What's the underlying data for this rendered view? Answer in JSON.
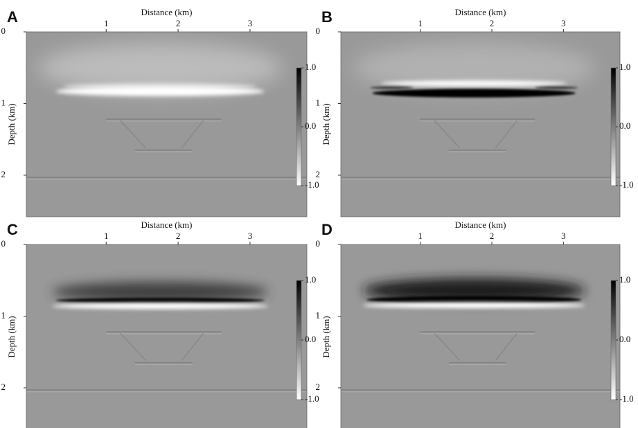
{
  "chart_data": [
    {
      "type": "image",
      "panel_label": "A",
      "xlabel": "Distance (km)",
      "ylabel": "Depth (km)",
      "xlim": [
        -0.11,
        3.79
      ],
      "ylim": [
        0,
        2.58
      ],
      "y_inverted": true,
      "xticks": [
        1,
        2,
        3
      ],
      "yticks": [
        0,
        1,
        2
      ],
      "colorbar": {
        "lim": [
          -1,
          1
        ],
        "ticks": [
          {
            "value": 1,
            "label": "1.0"
          },
          {
            "value": 0,
            "label": "0.0"
          },
          {
            "value": -1,
            "label": "-1.0"
          }
        ]
      }
    },
    {
      "type": "image",
      "panel_label": "B",
      "xlabel": "Distance (km)",
      "ylabel": "Depth (km)",
      "xlim": [
        -0.11,
        3.79
      ],
      "ylim": [
        0,
        2.58
      ],
      "y_inverted": true,
      "xticks": [
        1,
        2,
        3
      ],
      "yticks": [
        0,
        1,
        2
      ],
      "colorbar": {
        "lim": [
          -1,
          1
        ],
        "ticks": [
          {
            "value": 1,
            "label": "1.0"
          },
          {
            "value": 0,
            "label": "0.0"
          },
          {
            "value": -1,
            "label": "-1.0"
          }
        ]
      }
    },
    {
      "type": "image",
      "panel_label": "C",
      "xlabel": "Distance (km)",
      "ylabel": "Depth (km)",
      "xlim": [
        -0.11,
        3.79
      ],
      "ylim": [
        0,
        2.58
      ],
      "y_inverted": true,
      "xticks": [
        1,
        2,
        3
      ],
      "yticks": [
        0,
        1,
        2
      ],
      "colorbar": {
        "lim": [
          -1,
          1
        ],
        "ticks": [
          {
            "value": 1,
            "label": "1.0"
          },
          {
            "value": 0,
            "label": "0.0"
          },
          {
            "value": -1,
            "label": "-1.0"
          }
        ]
      }
    },
    {
      "type": "image",
      "panel_label": "D",
      "xlabel": "Distance (km)",
      "ylabel": "Depth (km)",
      "xlim": [
        -0.11,
        3.79
      ],
      "ylim": [
        0,
        2.58
      ],
      "y_inverted": true,
      "xticks": [
        1,
        2,
        3
      ],
      "yticks": [
        0,
        1,
        2
      ],
      "colorbar": {
        "lim": [
          -1,
          1
        ],
        "ticks": [
          {
            "value": 1,
            "label": "1.0"
          },
          {
            "value": 0,
            "label": "0.0"
          },
          {
            "value": -1,
            "label": "-1.0"
          }
        ]
      }
    }
  ]
}
